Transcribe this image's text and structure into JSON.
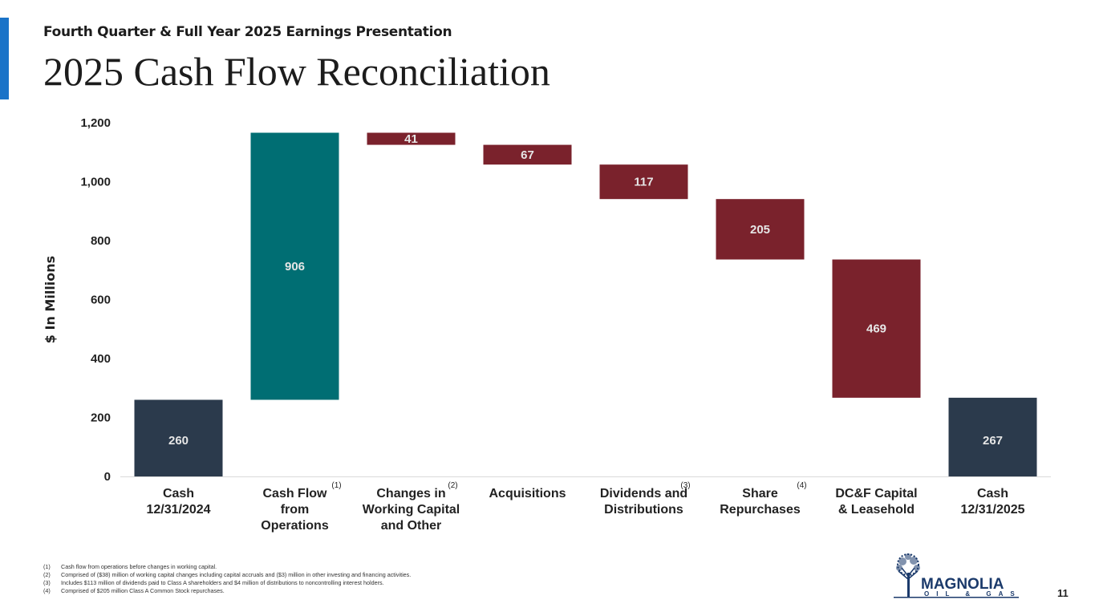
{
  "header": {
    "subtitle": "Fourth Quarter & Full Year 2025 Earnings Presentation",
    "title": "2025 Cash Flow Reconciliation"
  },
  "colors": {
    "accent": "#1a73c8",
    "cash": "#2b3a4c",
    "increase": "#006e73",
    "decrease": "#7a222c"
  },
  "chart_data": {
    "type": "bar",
    "subtype": "waterfall",
    "ylabel": "$ In Millions",
    "ylim": [
      0,
      1200
    ],
    "yticks": [
      "0",
      "200",
      "400",
      "600",
      "800",
      "1,000",
      "1,200"
    ],
    "ytick_values": [
      0,
      200,
      400,
      600,
      800,
      1000,
      1200
    ],
    "grid": false,
    "categories": [
      {
        "lines": [
          "Cash",
          "12/31/2024"
        ],
        "footnote": ""
      },
      {
        "lines": [
          "Cash Flow",
          "from",
          "Operations"
        ],
        "footnote": "(1)"
      },
      {
        "lines": [
          "Changes in",
          "Working Capital",
          "and Other"
        ],
        "footnote": "(2)"
      },
      {
        "lines": [
          "Acquisitions"
        ],
        "footnote": ""
      },
      {
        "lines": [
          "Dividends and",
          "Distributions"
        ],
        "footnote": "(3)"
      },
      {
        "lines": [
          "Share",
          "Repurchases"
        ],
        "footnote": "(4)"
      },
      {
        "lines": [
          "DC&F Capital",
          "& Leasehold"
        ],
        "footnote": ""
      },
      {
        "lines": [
          "Cash",
          "12/31/2025"
        ],
        "footnote": ""
      }
    ],
    "bars": [
      {
        "label": "260",
        "start": 0,
        "end": 260,
        "kind": "cash"
      },
      {
        "label": "906",
        "start": 260,
        "end": 1166,
        "kind": "increase"
      },
      {
        "label": "41",
        "start": 1166,
        "end": 1125,
        "kind": "decrease"
      },
      {
        "label": "67",
        "start": 1125,
        "end": 1058,
        "kind": "decrease"
      },
      {
        "label": "117",
        "start": 1058,
        "end": 941,
        "kind": "decrease"
      },
      {
        "label": "205",
        "start": 941,
        "end": 736,
        "kind": "decrease"
      },
      {
        "label": "469",
        "start": 736,
        "end": 267,
        "kind": "decrease"
      },
      {
        "label": "267",
        "start": 0,
        "end": 267,
        "kind": "cash"
      }
    ]
  },
  "footnotes": [
    {
      "num": "(1)",
      "text": "Cash flow from operations before changes in working capital."
    },
    {
      "num": "(2)",
      "text": "Comprised of ($38) million of working capital changes including capital accruals and ($3) million in other investing and financing activities."
    },
    {
      "num": "(3)",
      "text": "Includes $113 million of dividends paid to Class A shareholders and $4 million of distributions to noncontrolling interest holders."
    },
    {
      "num": "(4)",
      "text": "Comprised of $205 million Class A Common Stock repurchases."
    }
  ],
  "logo": {
    "word": "MAGNOLIA",
    "sub": "OIL & GAS"
  },
  "page_number": "11"
}
